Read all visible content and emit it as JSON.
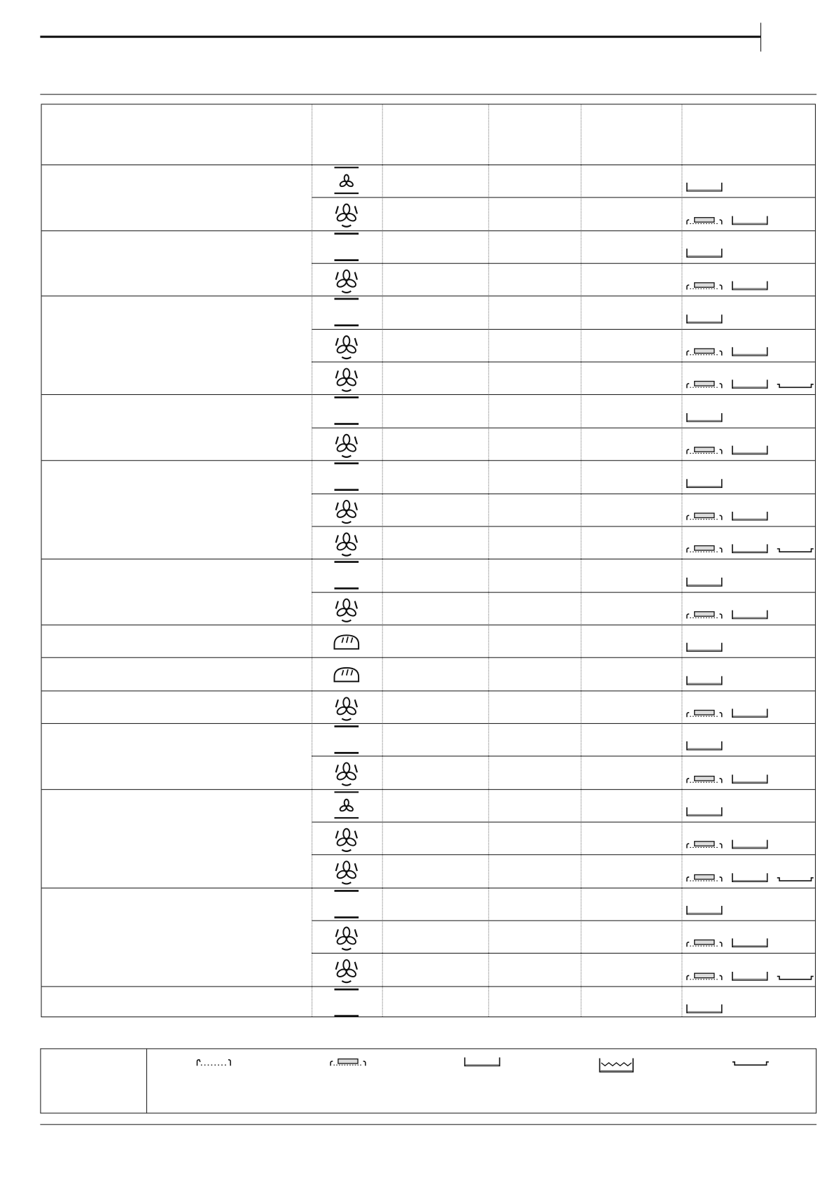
{
  "colors": {
    "line": "#1a1a1a",
    "divider": "#777777"
  },
  "table": {
    "header": [
      "",
      "",
      "",
      "",
      "",
      ""
    ],
    "groups": [
      {
        "rows": [
          {
            "mode_icon": "fan-with-top-bottom-heat-icon",
            "accessories": [
              "baking-pan-icon"
            ]
          },
          {
            "mode_icon": "fan-ring-heat-icon",
            "accessories": [
              "baking-tray-with-rack-icon",
              "baking-pan-icon"
            ]
          }
        ]
      },
      {
        "rows": [
          {
            "mode_icon": "top-bottom-heat-icon",
            "accessories": [
              "baking-pan-icon"
            ]
          },
          {
            "mode_icon": "fan-ring-heat-icon",
            "accessories": [
              "baking-tray-with-rack-icon",
              "baking-pan-icon"
            ]
          }
        ]
      },
      {
        "rows": [
          {
            "mode_icon": "top-bottom-heat-icon",
            "accessories": [
              "baking-pan-icon"
            ]
          },
          {
            "mode_icon": "fan-ring-heat-icon",
            "accessories": [
              "baking-tray-with-rack-icon",
              "baking-pan-icon"
            ]
          },
          {
            "mode_icon": "fan-ring-heat-icon",
            "accessories": [
              "baking-tray-with-rack-icon",
              "baking-pan-icon",
              "shallow-tray-icon"
            ]
          }
        ]
      },
      {
        "rows": [
          {
            "mode_icon": "top-bottom-heat-icon",
            "accessories": [
              "baking-pan-icon"
            ]
          },
          {
            "mode_icon": "fan-ring-heat-icon",
            "accessories": [
              "baking-tray-with-rack-icon",
              "baking-pan-icon"
            ]
          }
        ]
      },
      {
        "rows": [
          {
            "mode_icon": "top-bottom-heat-icon",
            "accessories": [
              "baking-pan-icon"
            ]
          },
          {
            "mode_icon": "fan-ring-heat-icon",
            "accessories": [
              "baking-tray-with-rack-icon",
              "baking-pan-icon"
            ]
          },
          {
            "mode_icon": "fan-ring-heat-icon",
            "accessories": [
              "baking-tray-with-rack-icon",
              "baking-pan-icon",
              "shallow-tray-icon"
            ]
          }
        ]
      },
      {
        "rows": [
          {
            "mode_icon": "top-bottom-heat-icon",
            "accessories": [
              "baking-pan-icon"
            ]
          },
          {
            "mode_icon": "fan-ring-heat-icon",
            "accessories": [
              "baking-tray-with-rack-icon",
              "baking-pan-icon"
            ]
          }
        ]
      },
      {
        "rows": [
          {
            "mode_icon": "bread-icon",
            "accessories": [
              "baking-pan-icon"
            ]
          }
        ]
      },
      {
        "rows": [
          {
            "mode_icon": "bread-icon",
            "accessories": [
              "baking-pan-icon"
            ]
          }
        ]
      },
      {
        "rows": [
          {
            "mode_icon": "fan-ring-heat-icon",
            "accessories": [
              "baking-tray-with-rack-icon",
              "baking-pan-icon"
            ]
          }
        ]
      },
      {
        "rows": [
          {
            "mode_icon": "top-bottom-heat-icon",
            "accessories": [
              "baking-pan-icon"
            ]
          },
          {
            "mode_icon": "fan-ring-heat-icon",
            "accessories": [
              "baking-tray-with-rack-icon",
              "baking-pan-icon"
            ]
          }
        ]
      },
      {
        "rows": [
          {
            "mode_icon": "fan-with-top-bottom-heat-icon",
            "accessories": [
              "baking-pan-icon"
            ]
          },
          {
            "mode_icon": "fan-ring-heat-icon",
            "accessories": [
              "baking-tray-with-rack-icon",
              "baking-pan-icon"
            ]
          },
          {
            "mode_icon": "fan-ring-heat-icon",
            "accessories": [
              "baking-tray-with-rack-icon",
              "baking-pan-icon",
              "shallow-tray-icon"
            ]
          }
        ]
      },
      {
        "rows": [
          {
            "mode_icon": "top-bottom-heat-icon",
            "accessories": [
              "baking-pan-icon"
            ]
          },
          {
            "mode_icon": "fan-ring-heat-icon",
            "accessories": [
              "baking-tray-with-rack-icon",
              "baking-pan-icon"
            ]
          },
          {
            "mode_icon": "fan-ring-heat-icon",
            "accessories": [
              "baking-tray-with-rack-icon",
              "baking-pan-icon",
              "shallow-tray-icon"
            ]
          }
        ]
      },
      {
        "rows": [
          {
            "mode_icon": "top-bottom-heat-icon",
            "accessories": [
              "baking-pan-icon"
            ]
          }
        ]
      }
    ]
  },
  "legend": {
    "icons": [
      "wire-shelf-icon",
      "baking-tray-with-rack-icon",
      "baking-pan-icon",
      "deep-pan-with-water-icon",
      "shallow-tray-icon"
    ]
  }
}
